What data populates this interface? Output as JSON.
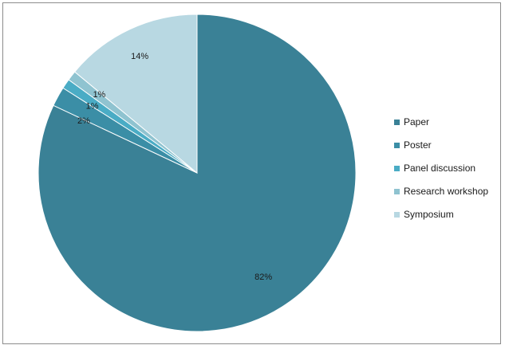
{
  "chart_data": {
    "type": "pie",
    "title": "",
    "legend_position": "right",
    "categories": [
      "Paper",
      "Poster",
      "Panel discussion",
      "Research workshop",
      "Symposium"
    ],
    "values": [
      82,
      2,
      1,
      1,
      14
    ],
    "labels": [
      "82%",
      "2%",
      "1%",
      "1%",
      "14%"
    ],
    "colors": [
      "#3a8196",
      "#3b8ea6",
      "#4aacc5",
      "#8fc3d0",
      "#b8d8e2"
    ],
    "start_angle_deg": 90,
    "direction": "clockwise"
  }
}
